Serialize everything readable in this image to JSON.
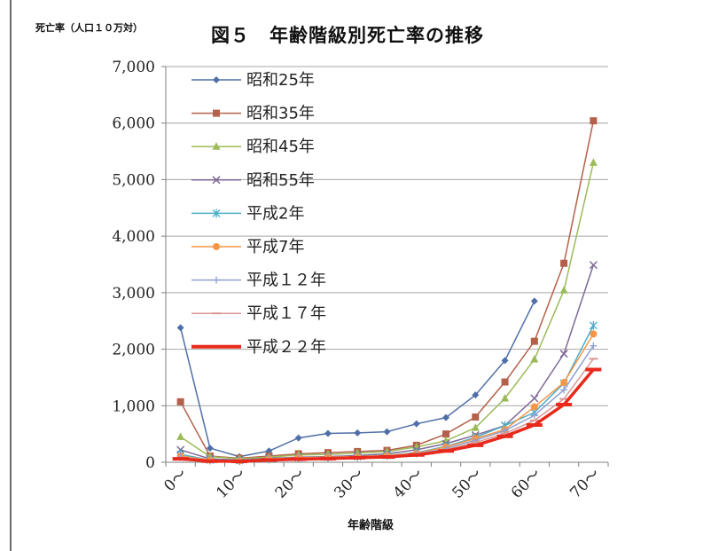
{
  "chart_data": {
    "type": "line",
    "title": "図５　年齢階級別死亡率の推移",
    "ylabel": "死亡率（人口１０万対）",
    "xlabel": "年齢階級",
    "categories": [
      "0",
      "5",
      "10",
      "15",
      "20",
      "25",
      "30",
      "35",
      "40",
      "45",
      "50",
      "55",
      "60",
      "65",
      "70"
    ],
    "tick_labels": [
      "0〜",
      "10〜",
      "20〜",
      "30〜",
      "40〜",
      "50〜",
      "60〜",
      "70〜"
    ],
    "ylim": [
      0,
      7000
    ],
    "yticks": [
      "0",
      "1,000",
      "2,000",
      "3,000",
      "4,000",
      "5,000",
      "6,000",
      "7,000"
    ],
    "grid": true,
    "legend_position": "top-left",
    "series": [
      {
        "name": "昭和25年",
        "color": "#4f6fa8",
        "marker": "diamond",
        "values": [
          2380,
          250,
          100,
          200,
          430,
          510,
          520,
          540,
          680,
          790,
          1190,
          1800,
          2850,
          null,
          null
        ]
      },
      {
        "name": "昭和35年",
        "color": "#b5604a",
        "marker": "square",
        "values": [
          1070,
          110,
          70,
          110,
          150,
          170,
          190,
          210,
          300,
          500,
          800,
          1420,
          2140,
          3520,
          6040
        ]
      },
      {
        "name": "昭和45年",
        "color": "#9bbb59",
        "marker": "triangle",
        "values": [
          450,
          100,
          60,
          90,
          130,
          140,
          160,
          190,
          270,
          380,
          610,
          1130,
          1820,
          3040,
          5300
        ]
      },
      {
        "name": "昭和55年",
        "color": "#7e6a96",
        "marker": "x",
        "values": [
          220,
          60,
          40,
          70,
          90,
          100,
          120,
          150,
          220,
          330,
          480,
          650,
          1130,
          1920,
          3490
        ]
      },
      {
        "name": "平成2年",
        "color": "#4bacc6",
        "marker": "asterisk",
        "values": [
          140,
          40,
          30,
          60,
          80,
          90,
          100,
          120,
          170,
          280,
          440,
          650,
          880,
          1400,
          2420
        ]
      },
      {
        "name": "平成7年",
        "color": "#f79646",
        "marker": "circle",
        "values": [
          110,
          40,
          25,
          60,
          80,
          90,
          100,
          120,
          160,
          270,
          420,
          580,
          980,
          1410,
          2270
        ]
      },
      {
        "name": "平成１２年",
        "color": "#8fa0d0",
        "marker": "plus",
        "values": [
          90,
          30,
          20,
          50,
          70,
          80,
          90,
          110,
          150,
          240,
          390,
          560,
          830,
          1280,
          2060
        ]
      },
      {
        "name": "平成１７年",
        "color": "#d99694",
        "marker": "dash",
        "values": [
          70,
          25,
          15,
          45,
          60,
          70,
          85,
          105,
          140,
          220,
          350,
          510,
          740,
          1120,
          1830
        ]
      },
      {
        "name": "平成２２年",
        "color": "#e8291c",
        "marker": "thickdash",
        "values": [
          60,
          20,
          15,
          40,
          55,
          65,
          80,
          95,
          130,
          200,
          300,
          460,
          660,
          1020,
          1640
        ]
      }
    ]
  }
}
